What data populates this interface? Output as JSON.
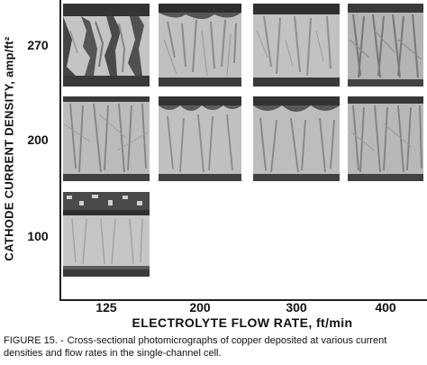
{
  "figure": {
    "y_axis_label": "CATHODE CURRENT DENSITY, amp/ft²",
    "x_axis_label": "ELECTROLYTE FLOW RATE, ft/min",
    "row_labels": [
      "270",
      "200",
      "100"
    ],
    "column_labels": [
      "125",
      "200",
      "300",
      "400"
    ],
    "caption_number": "FIGURE 15. -",
    "caption_text": "Cross-sectional photomicrographs of copper deposited at various current densities and flow rates in the single-channel cell."
  }
}
